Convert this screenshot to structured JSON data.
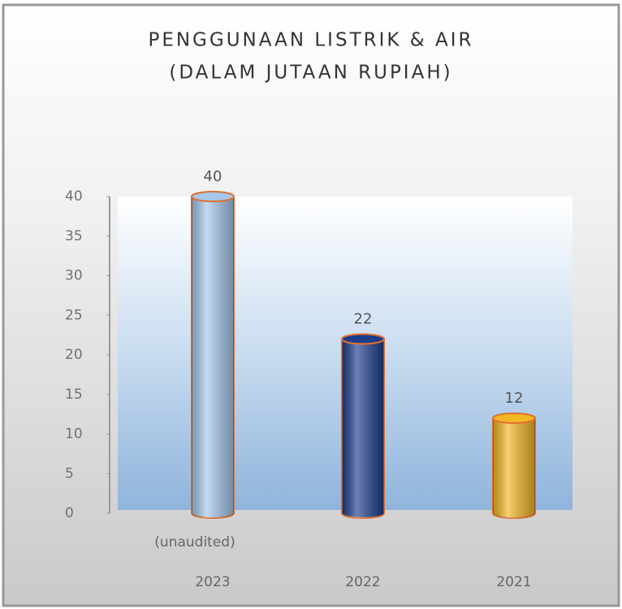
{
  "chart_data": {
    "type": "bar",
    "title": "PENGGUNAAN LISTRIK & AIR",
    "subtitle": "(DALAM JUTAAN RUPIAH)",
    "categories": [
      "2023",
      "2022",
      "2021"
    ],
    "values": [
      40,
      22,
      12
    ],
    "colors": [
      "#a4c8ec",
      "#1c3c8c",
      "#f2b822"
    ],
    "note": "(unaudited)",
    "ylim": [
      0,
      40
    ],
    "yticks": [
      0,
      5,
      10,
      15,
      20,
      25,
      30,
      35,
      40
    ]
  }
}
